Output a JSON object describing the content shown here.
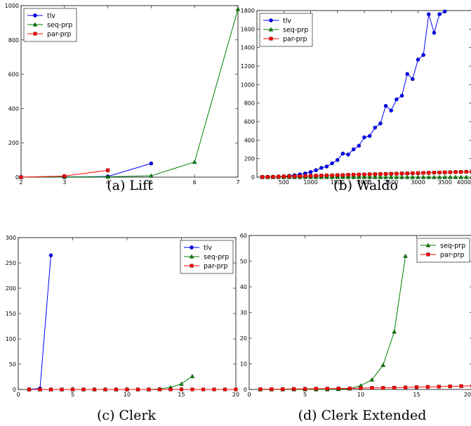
{
  "colors": {
    "tlv": "#0000ff",
    "seq": "#008000",
    "par": "#ff0000"
  },
  "chart_data": [
    {
      "type": "line",
      "caption": "(a) Lift",
      "xlim": [
        2,
        7
      ],
      "ylim": [
        0,
        1000
      ],
      "xticks": [
        2,
        3,
        4,
        5,
        6,
        7
      ],
      "yticks": [
        0,
        200,
        400,
        600,
        800,
        1000
      ],
      "legend_position": "top-left",
      "series": [
        {
          "name": "tlv",
          "marker": "circle",
          "color_key": "tlv",
          "points": [
            [
              2,
              0
            ],
            [
              3,
              1
            ],
            [
              4,
              4
            ],
            [
              5,
              80
            ]
          ]
        },
        {
          "name": "seq-prp",
          "marker": "triangle",
          "color_key": "seq",
          "points": [
            [
              2,
              0
            ],
            [
              3,
              1
            ],
            [
              4,
              2
            ],
            [
              5,
              8
            ],
            [
              6,
              88
            ],
            [
              7,
              980
            ]
          ]
        },
        {
          "name": "par-prp",
          "marker": "square",
          "color_key": "par",
          "points": [
            [
              2,
              0
            ],
            [
              3,
              6
            ],
            [
              4,
              40
            ]
          ]
        }
      ]
    },
    {
      "type": "line",
      "caption": "(b) Waldo",
      "xlim": [
        0,
        4000
      ],
      "ylim": [
        0,
        1800
      ],
      "xticks": [
        500,
        1000,
        1500,
        2000,
        2500,
        3000,
        3500,
        4000
      ],
      "yticks": [
        0,
        200,
        400,
        600,
        800,
        1000,
        1200,
        1400,
        1600,
        1800
      ],
      "legend_position": "top-left",
      "series": [
        {
          "name": "tlv",
          "marker": "circle",
          "color_key": "tlv",
          "points": [
            [
              100,
              1
            ],
            [
              200,
              2
            ],
            [
              300,
              3
            ],
            [
              400,
              5
            ],
            [
              500,
              8
            ],
            [
              600,
              14
            ],
            [
              700,
              20
            ],
            [
              800,
              30
            ],
            [
              900,
              40
            ],
            [
              1000,
              55
            ],
            [
              1100,
              75
            ],
            [
              1200,
              100
            ],
            [
              1300,
              115
            ],
            [
              1400,
              150
            ],
            [
              1500,
              185
            ],
            [
              1600,
              255
            ],
            [
              1700,
              245
            ],
            [
              1800,
              300
            ],
            [
              1900,
              340
            ],
            [
              2000,
              430
            ],
            [
              2100,
              445
            ],
            [
              2200,
              535
            ],
            [
              2300,
              580
            ],
            [
              2400,
              770
            ],
            [
              2500,
              720
            ],
            [
              2600,
              840
            ],
            [
              2700,
              880
            ],
            [
              2800,
              1115
            ],
            [
              2900,
              1060
            ],
            [
              3000,
              1270
            ],
            [
              3100,
              1320
            ],
            [
              3200,
              1760
            ],
            [
              3300,
              1560
            ],
            [
              3400,
              1760
            ],
            [
              3500,
              1790
            ]
          ]
        },
        {
          "name": "seq-prp",
          "marker": "triangle",
          "color_key": "seq",
          "points": [
            [
              100,
              0
            ],
            [
              200,
              0
            ],
            [
              300,
              0
            ],
            [
              400,
              0
            ],
            [
              500,
              0
            ],
            [
              600,
              0
            ],
            [
              700,
              0
            ],
            [
              800,
              0
            ],
            [
              900,
              0
            ],
            [
              1000,
              0
            ],
            [
              1100,
              0
            ],
            [
              1200,
              0
            ],
            [
              1300,
              0
            ],
            [
              1400,
              0
            ],
            [
              1500,
              0
            ],
            [
              1600,
              0
            ],
            [
              1700,
              0
            ],
            [
              1800,
              0
            ],
            [
              1900,
              0
            ],
            [
              2000,
              0
            ],
            [
              2100,
              0
            ],
            [
              2200,
              0
            ],
            [
              2300,
              0
            ],
            [
              2400,
              0
            ],
            [
              2500,
              0
            ],
            [
              2600,
              0
            ],
            [
              2700,
              0
            ],
            [
              2800,
              0
            ],
            [
              2900,
              0
            ],
            [
              3000,
              0
            ],
            [
              3100,
              0
            ],
            [
              3200,
              0
            ],
            [
              3300,
              0
            ],
            [
              3400,
              0
            ],
            [
              3500,
              0
            ],
            [
              3600,
              0
            ],
            [
              3700,
              0
            ],
            [
              3800,
              0
            ],
            [
              3900,
              0
            ],
            [
              4000,
              0
            ]
          ]
        },
        {
          "name": "par-prp",
          "marker": "square",
          "color_key": "par",
          "points": [
            [
              100,
              2
            ],
            [
              200,
              3
            ],
            [
              300,
              4
            ],
            [
              400,
              6
            ],
            [
              500,
              7
            ],
            [
              600,
              9
            ],
            [
              700,
              10
            ],
            [
              800,
              11
            ],
            [
              900,
              13
            ],
            [
              1000,
              14
            ],
            [
              1100,
              16
            ],
            [
              1200,
              17
            ],
            [
              1300,
              19
            ],
            [
              1400,
              20
            ],
            [
              1500,
              22
            ],
            [
              1600,
              23
            ],
            [
              1700,
              25
            ],
            [
              1800,
              26
            ],
            [
              1900,
              28
            ],
            [
              2000,
              29
            ],
            [
              2100,
              31
            ],
            [
              2200,
              32
            ],
            [
              2300,
              34
            ],
            [
              2400,
              35
            ],
            [
              2500,
              37
            ],
            [
              2600,
              38
            ],
            [
              2700,
              40
            ],
            [
              2800,
              41
            ],
            [
              2900,
              43
            ],
            [
              3000,
              44
            ],
            [
              3100,
              46
            ],
            [
              3200,
              47
            ],
            [
              3300,
              49
            ],
            [
              3400,
              50
            ],
            [
              3500,
              52
            ],
            [
              3600,
              53
            ],
            [
              3700,
              55
            ],
            [
              3800,
              56
            ],
            [
              3900,
              58
            ],
            [
              4000,
              59
            ]
          ]
        }
      ]
    },
    {
      "type": "line",
      "caption": "(c) Clerk",
      "xlim": [
        0,
        20
      ],
      "ylim": [
        0,
        300
      ],
      "xticks": [
        0,
        5,
        10,
        15,
        20
      ],
      "yticks": [
        0,
        50,
        100,
        150,
        200,
        250,
        300
      ],
      "legend_position": "top-right",
      "series": [
        {
          "name": "tlv",
          "marker": "circle",
          "color_key": "tlv",
          "points": [
            [
              1,
              0
            ],
            [
              2,
              2
            ],
            [
              3,
              265
            ]
          ]
        },
        {
          "name": "seq-prp",
          "marker": "triangle",
          "color_key": "seq",
          "points": [
            [
              1,
              0
            ],
            [
              2,
              0
            ],
            [
              3,
              0
            ],
            [
              4,
              0
            ],
            [
              5,
              0
            ],
            [
              6,
              0
            ],
            [
              7,
              0
            ],
            [
              8,
              0
            ],
            [
              9,
              0
            ],
            [
              10,
              0
            ],
            [
              11,
              0
            ],
            [
              12,
              0
            ],
            [
              13,
              1
            ],
            [
              14,
              4
            ],
            [
              15,
              11
            ],
            [
              16,
              26
            ]
          ]
        },
        {
          "name": "par-prp",
          "marker": "square",
          "color_key": "par",
          "points": [
            [
              1,
              0
            ],
            [
              2,
              0
            ],
            [
              3,
              0
            ],
            [
              4,
              0
            ],
            [
              5,
              0
            ],
            [
              6,
              0
            ],
            [
              7,
              0
            ],
            [
              8,
              0
            ],
            [
              9,
              0
            ],
            [
              10,
              0
            ],
            [
              11,
              0
            ],
            [
              12,
              0
            ],
            [
              13,
              0
            ],
            [
              14,
              0
            ],
            [
              15,
              0
            ],
            [
              16,
              0
            ],
            [
              17,
              0
            ],
            [
              18,
              0
            ],
            [
              19,
              0
            ],
            [
              20,
              0
            ]
          ]
        }
      ]
    },
    {
      "type": "line",
      "caption": "(d) Clerk Extended",
      "xlim": [
        0,
        20
      ],
      "ylim": [
        0,
        60
      ],
      "xticks": [
        0,
        5,
        10,
        15,
        20
      ],
      "yticks": [
        0,
        10,
        20,
        30,
        40,
        50,
        60
      ],
      "legend_position": "top-right",
      "series": [
        {
          "name": "seq-prp",
          "marker": "triangle",
          "color_key": "seq",
          "points": [
            [
              1,
              0
            ],
            [
              2,
              0
            ],
            [
              3,
              0
            ],
            [
              4,
              0
            ],
            [
              5,
              0
            ],
            [
              6,
              0
            ],
            [
              7,
              0
            ],
            [
              8,
              0.1
            ],
            [
              9,
              0.3
            ],
            [
              10,
              1.5
            ],
            [
              11,
              3.8
            ],
            [
              12,
              9.5
            ],
            [
              13,
              22.5
            ],
            [
              14,
              52
            ]
          ]
        },
        {
          "name": "par-prp",
          "marker": "square",
          "color_key": "par",
          "points": [
            [
              1,
              0.1
            ],
            [
              2,
              0.1
            ],
            [
              3,
              0.1
            ],
            [
              4,
              0.2
            ],
            [
              5,
              0.2
            ],
            [
              6,
              0.3
            ],
            [
              7,
              0.3
            ],
            [
              8,
              0.4
            ],
            [
              9,
              0.4
            ],
            [
              10,
              0.5
            ],
            [
              11,
              0.6
            ],
            [
              12,
              0.6
            ],
            [
              13,
              0.7
            ],
            [
              14,
              0.8
            ],
            [
              15,
              0.9
            ],
            [
              16,
              1.0
            ],
            [
              17,
              1.1
            ],
            [
              18,
              1.2
            ],
            [
              19,
              1.3
            ],
            [
              20,
              1.4
            ]
          ]
        }
      ]
    }
  ]
}
